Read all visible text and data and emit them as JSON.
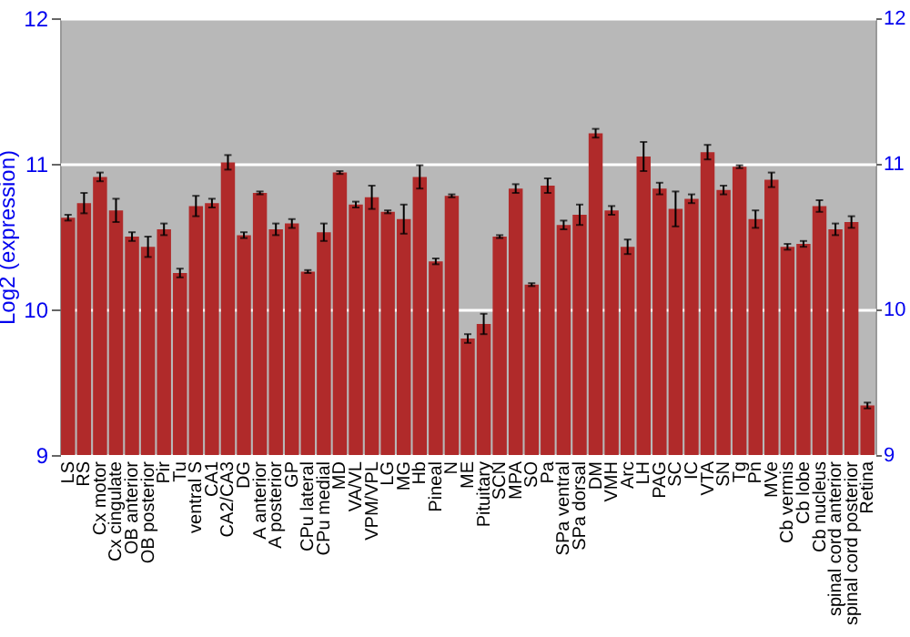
{
  "chart_data": {
    "type": "bar",
    "ylabel": "Log2 (expression)",
    "categories": [
      "LS",
      "RS",
      "Cx motor",
      "Cx cingulate",
      "OB anterior",
      "OB posterior",
      "Pir",
      "Tu",
      "ventral S",
      "CA1",
      "CA2/CA3",
      "DG",
      "A anterior",
      "A posterior",
      "GP",
      "CPu lateral",
      "CPu medial",
      "MD",
      "VA/VL",
      "VPM/VPL",
      "LG",
      "MG",
      "Hb",
      "Pineal",
      "N",
      "ME",
      "Pituitary",
      "SCN",
      "MPA",
      "SO",
      "Pa",
      "SPa ventral",
      "SPa dorsal",
      "DM",
      "VMH",
      "Arc",
      "LH",
      "PAG",
      "SC",
      "IC",
      "VTA",
      "SN",
      "Tg",
      "Pn",
      "MVe",
      "Cb vermis",
      "Cb lobe",
      "Cb nucleus",
      "spinal cord anterior",
      "spinal cord posterior",
      "Retina"
    ],
    "values": [
      10.63,
      10.73,
      10.91,
      10.68,
      10.5,
      10.43,
      10.55,
      10.25,
      10.71,
      10.73,
      11.01,
      10.51,
      10.8,
      10.55,
      10.59,
      10.26,
      10.53,
      10.94,
      10.72,
      10.77,
      10.67,
      10.62,
      10.91,
      10.33,
      10.78,
      9.8,
      9.9,
      10.5,
      10.83,
      10.17,
      10.85,
      10.58,
      10.65,
      11.21,
      10.68,
      10.43,
      11.05,
      10.83,
      10.69,
      10.76,
      11.08,
      10.82,
      10.98,
      10.62,
      10.89,
      10.43,
      10.45,
      10.71,
      10.55,
      10.6,
      9.34
    ],
    "errors": [
      0.02,
      0.07,
      0.03,
      0.08,
      0.03,
      0.07,
      0.04,
      0.03,
      0.07,
      0.03,
      0.05,
      0.02,
      0.01,
      0.04,
      0.03,
      0.01,
      0.06,
      0.01,
      0.02,
      0.08,
      0.01,
      0.1,
      0.08,
      0.02,
      0.01,
      0.03,
      0.07,
      0.01,
      0.03,
      0.01,
      0.05,
      0.03,
      0.07,
      0.03,
      0.03,
      0.05,
      0.1,
      0.04,
      0.12,
      0.03,
      0.05,
      0.03,
      0.01,
      0.06,
      0.05,
      0.02,
      0.02,
      0.04,
      0.04,
      0.04,
      0.02
    ],
    "color": "#b02a2a",
    "ylim": [
      9,
      12
    ],
    "yticks": [
      9,
      10,
      11,
      12
    ],
    "y2lim": [
      9,
      12
    ],
    "y2ticks": [
      9,
      10,
      11,
      12
    ],
    "grid": "y"
  }
}
